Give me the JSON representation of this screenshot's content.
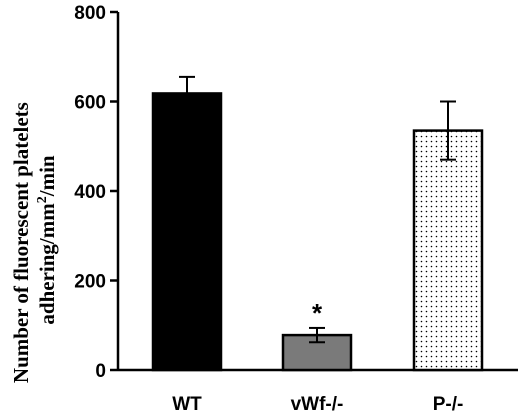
{
  "chart_data": {
    "type": "bar",
    "categories": [
      "WT",
      "vWf-/-",
      "P-/-"
    ],
    "values": [
      618,
      78,
      535
    ],
    "errors": [
      37,
      16,
      65
    ],
    "colors": [
      "#000000",
      "#7a7a7a",
      "#ffffff"
    ],
    "patterns": [
      "solid",
      "solid",
      "dotted"
    ],
    "ylim": [
      0,
      800
    ],
    "yticks": [
      0,
      200,
      400,
      600,
      800
    ],
    "ylabel_line1": "Number of fluorescent platelets",
    "ylabel_line2_pre": "adhering/mm",
    "ylabel_line2_sup": "2",
    "ylabel_line2_post": "/min",
    "annotations": [
      {
        "category": "vWf-/-",
        "text": "*"
      }
    ],
    "grid": false
  }
}
